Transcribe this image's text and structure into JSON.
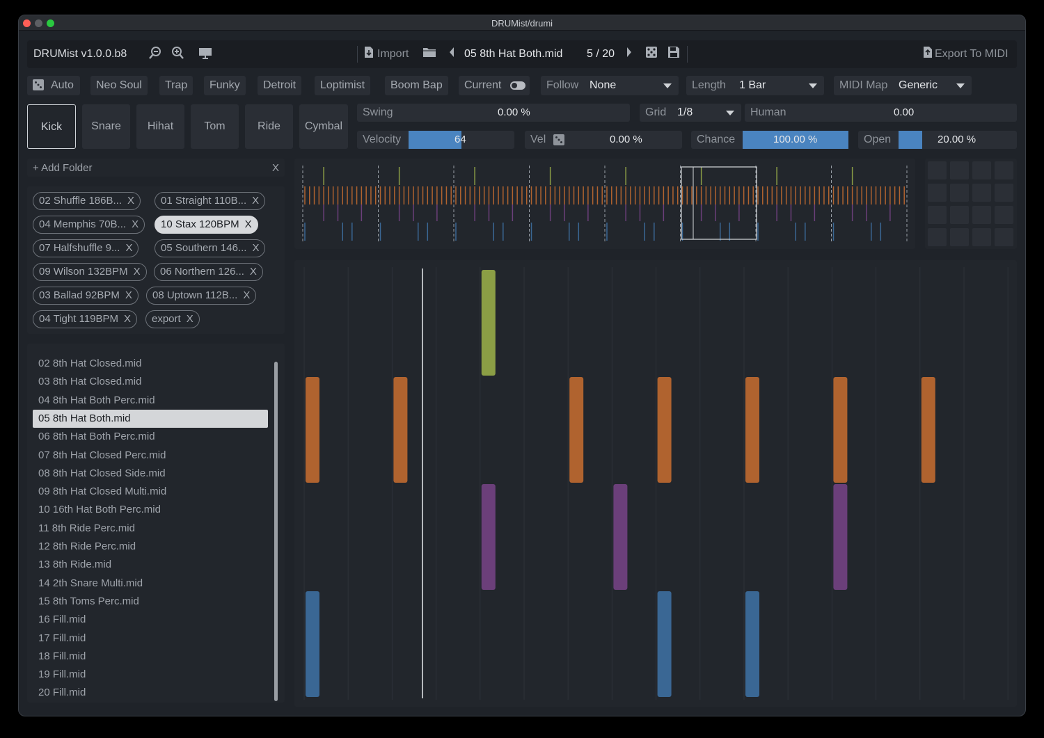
{
  "window": {
    "title": "DRUMist/drumi"
  },
  "toolbar": {
    "app_name": "DRUMist v1.0.0.b8",
    "import_label": "Import",
    "current_file": "05 8th Hat Both.mid",
    "page_counter": "5 / 20",
    "export_label": "Export To MIDI"
  },
  "presets": {
    "auto_label": "Auto",
    "styles": [
      "Neo Soul",
      "Trap",
      "Funky",
      "Detroit",
      "Loptimist",
      "Boom Bap"
    ],
    "current_label": "Current",
    "follow": {
      "label": "Follow",
      "value": "None"
    },
    "length": {
      "label": "Length",
      "value": "1 Bar"
    },
    "midi_map": {
      "label": "MIDI Map",
      "value": "Generic"
    }
  },
  "instruments": [
    "Kick",
    "Snare",
    "Hihat",
    "Tom",
    "Ride",
    "Cymbal"
  ],
  "active_instrument": "Kick",
  "params": {
    "swing": {
      "label": "Swing",
      "value": "0.00 %"
    },
    "grid": {
      "label": "Grid",
      "value": "1/8"
    },
    "human": {
      "label": "Human",
      "value": "0.00"
    },
    "velocity": {
      "label": "Velocity",
      "value": "64",
      "level": 0.5
    },
    "vel": {
      "label": "Vel",
      "value": "0.00 %"
    },
    "chance": {
      "label": "Chance",
      "value": "100.00 %",
      "level": 1.0
    },
    "open": {
      "label": "Open",
      "value": "20.00 %",
      "level": 0.2
    }
  },
  "folders": {
    "add_label": "+ Add Folder",
    "clear_label": "X",
    "tags": [
      {
        "label": "02 Shuffle 186B...",
        "x": "X"
      },
      {
        "label": "01 Straight 110B...",
        "x": "X"
      },
      {
        "label": "04 Memphis 70B...",
        "x": "X"
      },
      {
        "label": "10 Stax 120BPM",
        "x": "X",
        "selected": true
      },
      {
        "label": "07 Halfshuffle 9...",
        "x": "X"
      },
      {
        "label": "05 Southern 146...",
        "x": "X"
      },
      {
        "label": "09 Wilson 132BPM",
        "x": "X"
      },
      {
        "label": "06 Northern 126...",
        "x": "X"
      },
      {
        "label": "03 Ballad 92BPM",
        "x": "X"
      },
      {
        "label": "08 Uptown 112B...",
        "x": "X"
      },
      {
        "label": "04 Tight 119BPM",
        "x": "X"
      },
      {
        "label": "export",
        "x": "X"
      }
    ]
  },
  "files": [
    "02 8th Hat Closed.mid",
    "03 8th Hat Closed.mid",
    "04 8th Hat Both Perc.mid",
    "05 8th Hat Both.mid",
    "06 8th Hat Both Perc.mid",
    "07 8th Hat Closed Perc.mid",
    "08 8th Hat Closed Side.mid",
    "09 8th Hat Closed Multi.mid",
    "10 16th Hat Both Perc.mid",
    "11 8th Ride Perc.mid",
    "12 8th Ride Perc.mid",
    "13 8th Ride.mid",
    "14 2th Snare Multi.mid",
    "15 8th Toms Perc.mid",
    "16 Fill.mid",
    "17 Fill.mid",
    "18 Fill.mid",
    "19 Fill.mid",
    "20 Fill.mid"
  ],
  "selected_file_index": 3,
  "colors": {
    "hat": "#b0632f",
    "accent_green": "#8b9e45",
    "snare_purple": "#6b3f7a",
    "kick_blue": "#3a6794",
    "slider_blue": "#4a84c0"
  },
  "pattern": {
    "steps": 16,
    "lanes": [
      "accent",
      "hat",
      "snare",
      "kick"
    ],
    "notes": {
      "accent": [
        4
      ],
      "hat": [
        0,
        2,
        6,
        8,
        10,
        12,
        14
      ],
      "snare": [
        4,
        7,
        12
      ],
      "kick": [
        0,
        8,
        10
      ]
    }
  }
}
